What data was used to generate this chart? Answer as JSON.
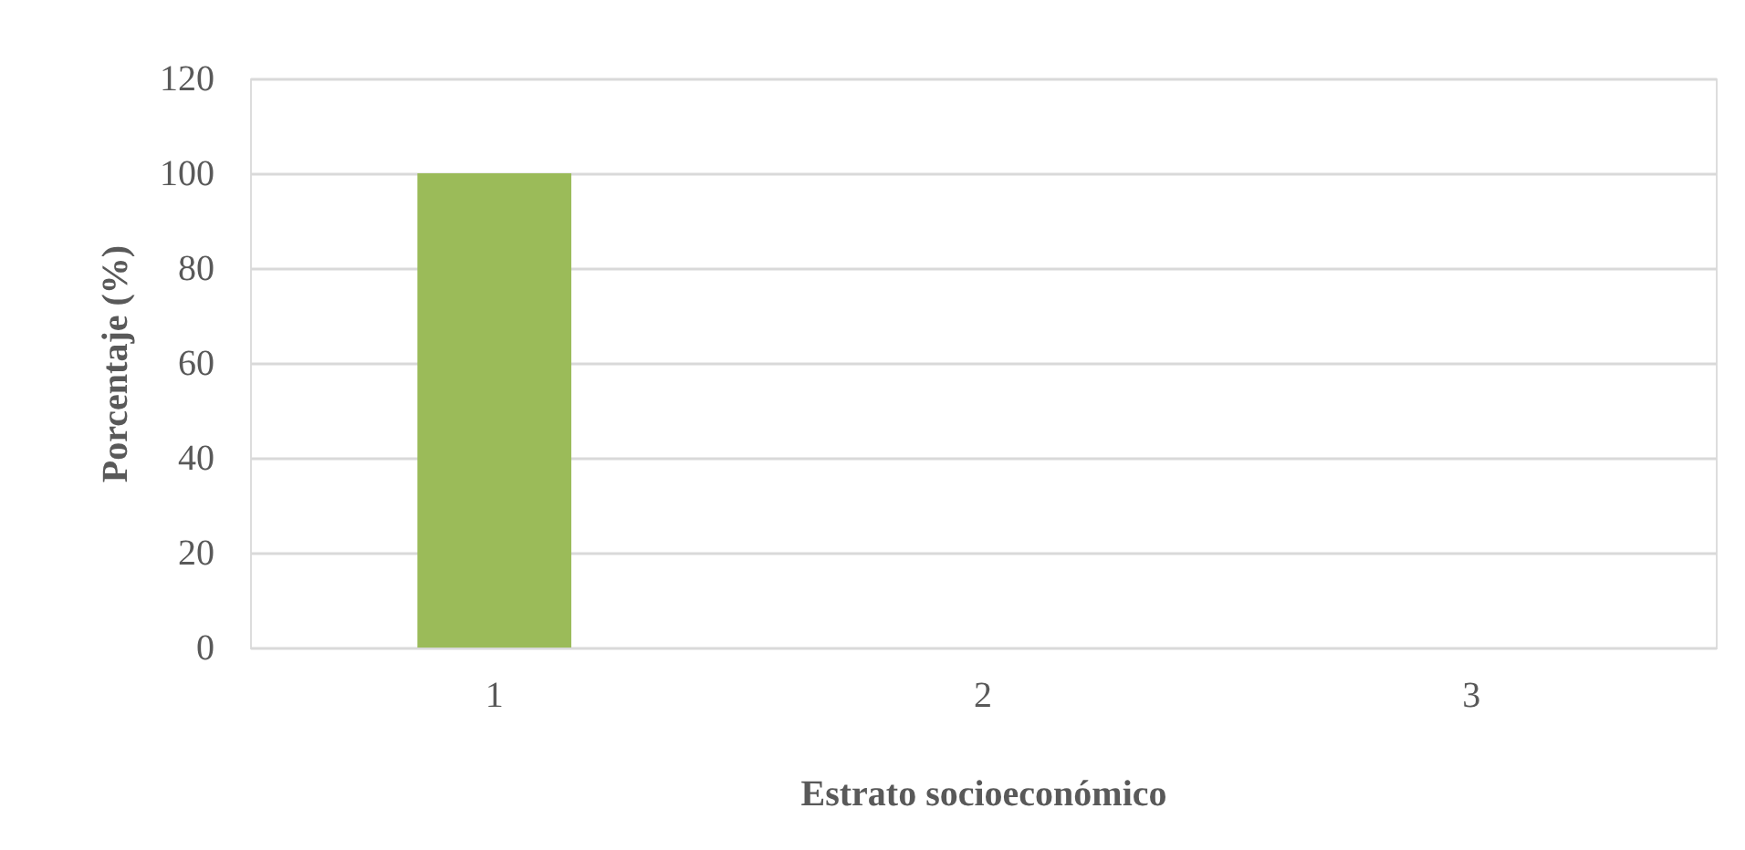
{
  "chart_data": {
    "type": "bar",
    "xlabel": "Estrato socioeconómico",
    "ylabel": "Porcentaje (%)",
    "categories": [
      "1",
      "2",
      "3"
    ],
    "values": [
      100,
      0,
      0
    ],
    "color": "#9bbb59",
    "ylim": [
      0,
      120
    ],
    "yticks": [
      0,
      20,
      40,
      60,
      80,
      100,
      120
    ],
    "grid": "y"
  }
}
